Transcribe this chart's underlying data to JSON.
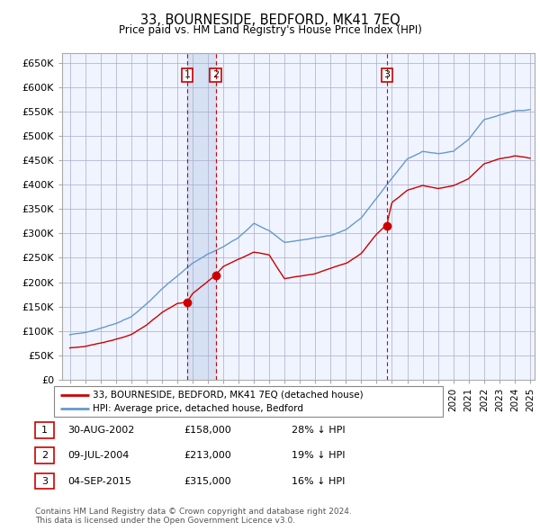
{
  "title": "33, BOURNESIDE, BEDFORD, MK41 7EQ",
  "subtitle": "Price paid vs. HM Land Registry's House Price Index (HPI)",
  "legend_line1": "33, BOURNESIDE, BEDFORD, MK41 7EQ (detached house)",
  "legend_line2": "HPI: Average price, detached house, Bedford",
  "transactions": [
    {
      "num": 1,
      "date": "30-AUG-2002",
      "price": "£158,000",
      "note": "28% ↓ HPI",
      "year": 2002.66
    },
    {
      "num": 2,
      "date": "09-JUL-2004",
      "price": "£213,000",
      "note": "19% ↓ HPI",
      "year": 2004.52
    },
    {
      "num": 3,
      "date": "04-SEP-2015",
      "price": "£315,000",
      "note": "16% ↓ HPI",
      "year": 2015.67
    }
  ],
  "transaction_values": [
    158000,
    213000,
    315000
  ],
  "copyright": "Contains HM Land Registry data © Crown copyright and database right 2024.\nThis data is licensed under the Open Government Licence v3.0.",
  "line_color_red": "#cc0000",
  "line_color_blue": "#6699cc",
  "marker_color_red": "#cc0000",
  "plot_bg": "#f0f4ff",
  "shade_color": "#ccd9ee",
  "grid_color": "#aaaacc",
  "ylim": [
    0,
    670000
  ],
  "yticks": [
    0,
    50000,
    100000,
    150000,
    200000,
    250000,
    300000,
    350000,
    400000,
    450000,
    500000,
    550000,
    600000,
    650000
  ],
  "ytick_labels": [
    "£0",
    "£50K",
    "£100K",
    "£150K",
    "£200K",
    "£250K",
    "£300K",
    "£350K",
    "£400K",
    "£450K",
    "£500K",
    "£550K",
    "£600K",
    "£650K"
  ],
  "hpi_key_years": [
    1995,
    1996,
    1997,
    1998,
    1999,
    2000,
    2001,
    2002,
    2003,
    2004,
    2005,
    2006,
    2007,
    2008,
    2009,
    2010,
    2011,
    2012,
    2013,
    2014,
    2015,
    2016,
    2017,
    2018,
    2019,
    2020,
    2021,
    2022,
    2023,
    2024,
    2025
  ],
  "hpi_key_vals": [
    92000,
    96000,
    105000,
    115000,
    128000,
    155000,
    185000,
    210000,
    235000,
    255000,
    270000,
    290000,
    320000,
    305000,
    280000,
    285000,
    290000,
    292000,
    305000,
    330000,
    370000,
    410000,
    450000,
    465000,
    460000,
    465000,
    490000,
    530000,
    540000,
    548000,
    550000
  ],
  "red_key_years": [
    1995,
    1996,
    1997,
    1998,
    1999,
    2000,
    2001,
    2002,
    2002.66,
    2003,
    2004,
    2004.52,
    2005,
    2006,
    2007,
    2008,
    2009,
    2010,
    2011,
    2012,
    2013,
    2014,
    2015,
    2015.67,
    2016,
    2017,
    2018,
    2019,
    2020,
    2021,
    2022,
    2023,
    2024,
    2025
  ],
  "red_key_vals": [
    65000,
    68000,
    75000,
    82000,
    92000,
    112000,
    138000,
    155000,
    158000,
    175000,
    200000,
    213000,
    230000,
    245000,
    260000,
    255000,
    205000,
    210000,
    215000,
    225000,
    235000,
    255000,
    295000,
    315000,
    360000,
    385000,
    395000,
    390000,
    395000,
    410000,
    440000,
    450000,
    455000,
    450000
  ]
}
